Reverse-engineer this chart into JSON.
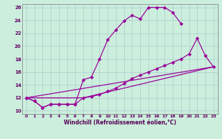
{
  "xlabel": "Windchill (Refroidissement éolien,°C)",
  "bg_color": "#cceedd",
  "grid_color": "#aacccc",
  "line_color": "#990099",
  "xlim": [
    -0.5,
    23.5
  ],
  "ylim": [
    9.5,
    26.5
  ],
  "yticks": [
    10,
    12,
    14,
    16,
    18,
    20,
    22,
    24,
    26
  ],
  "xticks": [
    0,
    1,
    2,
    3,
    4,
    5,
    6,
    7,
    8,
    9,
    10,
    11,
    12,
    13,
    14,
    15,
    16,
    17,
    18,
    19,
    20,
    21,
    22,
    23
  ],
  "curve1_x": [
    0,
    1,
    2,
    3,
    4,
    5,
    6,
    7,
    8,
    9,
    10,
    11,
    12,
    13,
    14,
    15,
    16,
    17,
    18,
    19
  ],
  "curve1_y": [
    12,
    11.5,
    10.5,
    11,
    11,
    11,
    11,
    14.8,
    15.2,
    18.0,
    21.0,
    22.5,
    23.9,
    24.8,
    24.2,
    26.0,
    26.0,
    26.0,
    25.2,
    23.5
  ],
  "curve2_x": [
    0,
    1,
    2,
    3,
    4,
    5,
    6,
    7,
    8,
    9,
    10,
    11,
    12,
    13,
    14,
    15,
    16,
    17,
    18,
    19,
    20,
    21,
    22,
    23
  ],
  "curve2_y": [
    12,
    11.5,
    10.5,
    11,
    11,
    11,
    11,
    12.0,
    12.2,
    12.5,
    13.0,
    13.5,
    14.2,
    15.0,
    15.5,
    16.0,
    16.5,
    17.0,
    17.5,
    18.0,
    18.8,
    21.2,
    18.5,
    16.8
  ],
  "line3_x": [
    0,
    23
  ],
  "line3_y": [
    12,
    16.8
  ],
  "line4_x": [
    0,
    7,
    23
  ],
  "line4_y": [
    12,
    12,
    16.8
  ]
}
